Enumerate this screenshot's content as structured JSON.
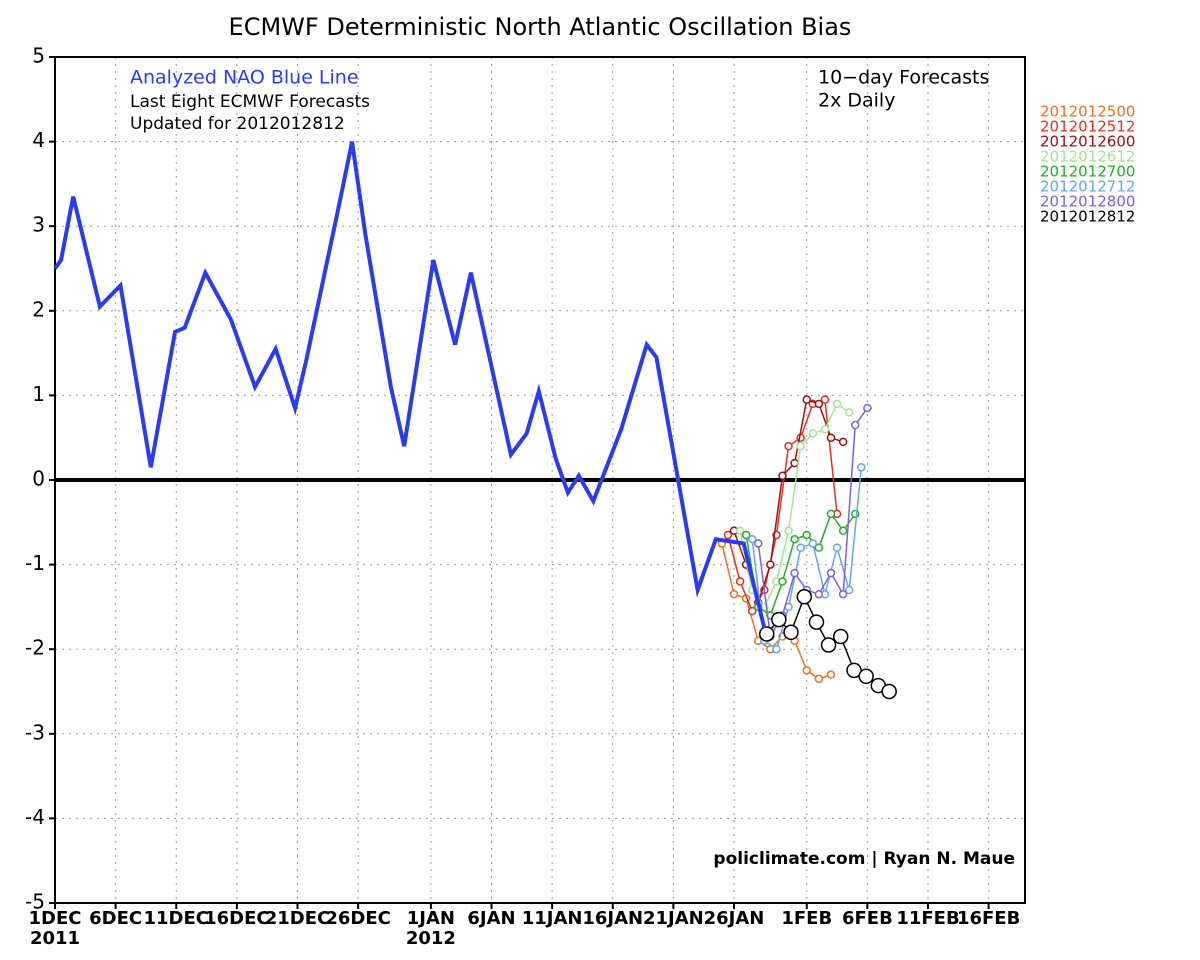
{
  "chart_data": {
    "type": "line",
    "title": "ECMWF Deterministic North Atlantic Oscillation Bias",
    "annotations": [
      {
        "text": "Analyzed NAO Blue Line",
        "color": "#2a3cf0"
      },
      {
        "text": "Last Eight ECMWF Forecasts",
        "color": "#000000"
      },
      {
        "text": "Updated for 2012012812",
        "color": "#000000"
      },
      {
        "text": "10−day Forecasts",
        "color": "#000000"
      },
      {
        "text": "2x Daily",
        "color": "#000000"
      },
      {
        "text": "policlimate.com | Ryan N. Maue",
        "color": "#000000"
      }
    ],
    "xlim": [
      0,
      80
    ],
    "xticks": [
      {
        "value": 0,
        "label": "1DEC"
      },
      {
        "value": 5,
        "label": "6DEC"
      },
      {
        "value": 10,
        "label": "11DEC"
      },
      {
        "value": 15,
        "label": "16DEC"
      },
      {
        "value": 20,
        "label": "21DEC"
      },
      {
        "value": 25,
        "label": "26DEC"
      },
      {
        "value": 31,
        "label": "1JAN"
      },
      {
        "value": 36,
        "label": "6JAN"
      },
      {
        "value": 41,
        "label": "11JAN"
      },
      {
        "value": 46,
        "label": "16JAN"
      },
      {
        "value": 51,
        "label": "21JAN"
      },
      {
        "value": 56,
        "label": "26JAN"
      },
      {
        "value": 62,
        "label": "1FEB"
      },
      {
        "value": 67,
        "label": "6FEB"
      },
      {
        "value": 72,
        "label": "11FEB"
      },
      {
        "value": 77,
        "label": "16FEB"
      }
    ],
    "year_labels": [
      {
        "value": 0,
        "label": "2011"
      },
      {
        "value": 31,
        "label": "2012"
      }
    ],
    "ylim": [
      -5,
      5
    ],
    "yticks": [
      -5,
      -4,
      -3,
      -2,
      -1,
      0,
      1,
      2,
      3,
      4,
      5
    ],
    "grid": true,
    "zero_line": true,
    "analyzed": {
      "color": "#2a3cf0",
      "x": [
        0,
        0.5,
        1.5,
        3.7,
        5.4,
        7.9,
        9.9,
        10.7,
        12.4,
        14.5,
        16.5,
        18.2,
        19.8,
        20.7,
        23.5,
        24.5,
        25.6,
        27.7,
        28.8,
        31.2,
        33,
        34.3,
        37.6,
        38.9,
        39.9,
        41.3,
        42.3,
        43.2,
        44.4,
        46.7,
        48.8,
        49.6,
        53,
        54.5,
        56.8,
        58.5
      ],
      "values": [
        2.5,
        2.6,
        3.35,
        2.05,
        2.3,
        0.15,
        1.75,
        1.8,
        2.45,
        1.9,
        1.1,
        1.55,
        0.85,
        1.4,
        3.3,
        4.0,
        2.9,
        1.1,
        0.4,
        2.6,
        1.6,
        2.45,
        0.3,
        0.55,
        1.05,
        0.25,
        -0.15,
        0.05,
        -0.25,
        0.6,
        1.6,
        1.45,
        -1.3,
        -0.7,
        -0.75,
        -1.75
      ]
    },
    "series": [
      {
        "name": "2012012500",
        "color": "#f07020",
        "x": [
          55,
          56,
          57,
          58,
          59,
          60,
          61,
          62,
          63,
          64
        ],
        "values": [
          -0.75,
          -1.35,
          -1.4,
          -1.9,
          -2.0,
          -1.85,
          -1.9,
          -2.25,
          -2.35,
          -2.3
        ]
      },
      {
        "name": "2012012512",
        "color": "#e03020",
        "x": [
          55.5,
          56.5,
          57.5,
          58.5,
          59.5,
          60.5,
          61.5,
          62.5,
          63.5,
          64.5
        ],
        "values": [
          -0.65,
          -1.2,
          -1.55,
          -1.3,
          -0.65,
          0.4,
          0.5,
          0.9,
          0.95,
          -0.4
        ]
      },
      {
        "name": "2012012600",
        "color": "#a01010",
        "x": [
          56,
          57,
          58,
          59,
          60,
          61,
          62,
          63,
          64,
          65
        ],
        "values": [
          -0.6,
          -1.0,
          -1.45,
          -1.0,
          0.05,
          0.2,
          0.95,
          0.9,
          0.5,
          0.45
        ]
      },
      {
        "name": "2012012612",
        "color": "#a0e890",
        "x": [
          56.5,
          57.5,
          58.5,
          59.5,
          60.5,
          61.5,
          62.5,
          63.5,
          64.5,
          65.5
        ],
        "values": [
          -0.6,
          -1.3,
          -1.5,
          -1.2,
          -0.6,
          0.4,
          0.55,
          0.6,
          0.9,
          0.8
        ]
      },
      {
        "name": "2012012700",
        "color": "#20b020",
        "x": [
          57,
          58,
          59,
          60,
          61,
          62,
          63,
          64,
          65,
          66
        ],
        "values": [
          -0.65,
          -1.5,
          -1.6,
          -1.2,
          -0.7,
          -0.65,
          -0.8,
          -0.4,
          -0.6,
          -0.4
        ]
      },
      {
        "name": "2012012712",
        "color": "#60a8e8",
        "x": [
          57.5,
          58.5,
          59.5,
          60.5,
          61.5,
          62.5,
          63.5,
          64.5,
          65.5,
          66.5
        ],
        "values": [
          -0.7,
          -1.9,
          -2.0,
          -1.5,
          -0.8,
          -0.75,
          -1.35,
          -0.8,
          -1.3,
          0.15
        ]
      },
      {
        "name": "2012012800",
        "color": "#8060d8",
        "x": [
          58,
          59,
          60,
          61,
          62,
          63,
          64,
          65,
          66,
          67
        ],
        "values": [
          -0.75,
          -1.85,
          -1.6,
          -1.1,
          -1.3,
          -1.35,
          -1.1,
          -1.35,
          0.65,
          0.85
        ]
      },
      {
        "name": "2012012812",
        "color": "#000000",
        "x": [
          58.7,
          59.7,
          60.7,
          61.8,
          62.8,
          63.8,
          64.8,
          65.9,
          66.9,
          67.9,
          68.8
        ],
        "values": [
          -1.82,
          -1.65,
          -1.8,
          -1.38,
          -1.68,
          -1.95,
          -1.85,
          -2.25,
          -2.32,
          -2.43,
          -2.5
        ]
      }
    ]
  }
}
